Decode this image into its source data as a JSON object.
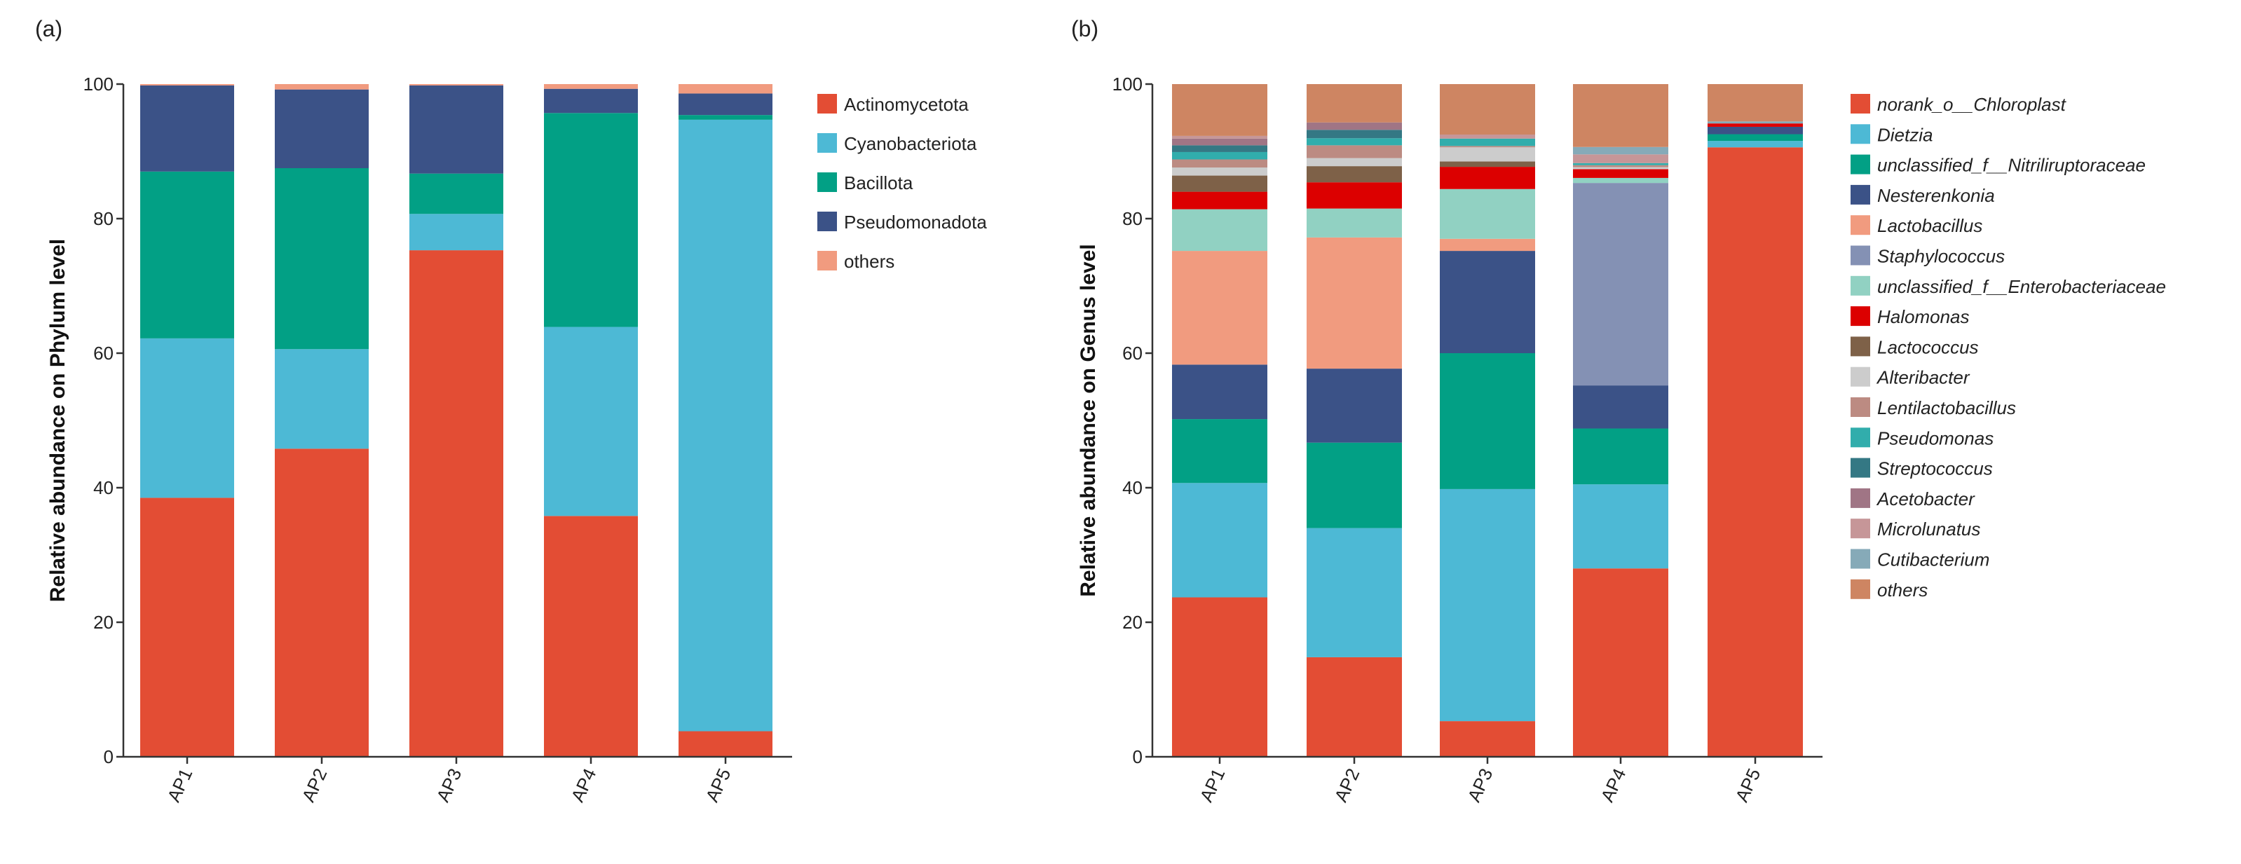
{
  "chart_data": [
    {
      "type": "bar",
      "stacked": true,
      "panel_label": "(a)",
      "title": "",
      "xlabel": "",
      "ylabel": "Relative abundance on Phylum level",
      "ylim": [
        0,
        100
      ],
      "yticks": [
        0,
        20,
        40,
        60,
        80,
        100
      ],
      "categories": [
        "AP1",
        "AP2",
        "AP3",
        "AP4",
        "AP5"
      ],
      "legend_position": "right",
      "series": [
        {
          "name": "Actinomycetota",
          "color": "#E34D34",
          "values": [
            38.5,
            45.8,
            75.3,
            35.8,
            3.8
          ]
        },
        {
          "name": "Cyanobacteriota",
          "color": "#4DB9D5",
          "values": [
            23.7,
            14.8,
            5.4,
            28.1,
            90.9
          ]
        },
        {
          "name": "Bacillota",
          "color": "#02A085",
          "values": [
            24.8,
            26.9,
            6.0,
            31.8,
            0.7
          ]
        },
        {
          "name": "Pseudomonadota",
          "color": "#3B5287",
          "values": [
            12.8,
            11.7,
            13.1,
            3.6,
            3.2
          ]
        },
        {
          "name": "others",
          "color": "#F19B7F",
          "values": [
            0.2,
            0.8,
            0.2,
            0.7,
            1.4
          ]
        }
      ]
    },
    {
      "type": "bar",
      "stacked": true,
      "panel_label": "(b)",
      "title": "",
      "xlabel": "",
      "ylabel": "Relative abundance on Genus level",
      "ylim": [
        0,
        100
      ],
      "yticks": [
        0,
        20,
        40,
        60,
        80,
        100
      ],
      "categories": [
        "AP1",
        "AP2",
        "AP3",
        "AP4",
        "AP5"
      ],
      "legend_position": "right",
      "legend_italic": true,
      "series": [
        {
          "name": "norank_o__Chloroplast",
          "color": "#E34D34",
          "values": [
            23.7,
            14.8,
            5.3,
            28.0,
            90.6
          ]
        },
        {
          "name": "Dietzia",
          "color": "#4DB9D5",
          "values": [
            17.0,
            19.2,
            34.5,
            12.5,
            0.95
          ]
        },
        {
          "name": "unclassified_f__Nitriliruptoraceae",
          "color": "#02A085",
          "values": [
            9.5,
            12.7,
            20.2,
            8.3,
            1.0
          ]
        },
        {
          "name": "Nesterenkonia",
          "color": "#3B5287",
          "values": [
            8.1,
            11.0,
            15.2,
            6.4,
            1.1
          ]
        },
        {
          "name": "Lactobacillus",
          "color": "#F19B7F",
          "values": [
            16.9,
            19.5,
            1.8,
            0,
            0
          ]
        },
        {
          "name": "Staphylococcus",
          "color": "#8491B4",
          "values": [
            0,
            0,
            0,
            30.1,
            0
          ]
        },
        {
          "name": "unclassified_f__Enterobacteriaceae",
          "color": "#91D1C2",
          "values": [
            6.2,
            4.3,
            7.4,
            0.75,
            0
          ]
        },
        {
          "name": "Halomonas",
          "color": "#DC0000",
          "values": [
            2.6,
            3.9,
            3.3,
            1.3,
            0.5
          ]
        },
        {
          "name": "Lactococcus",
          "color": "#7E6148",
          "values": [
            2.4,
            2.4,
            0.8,
            0,
            0
          ]
        },
        {
          "name": "Alteribacter",
          "color": "#CCCCCC",
          "values": [
            1.2,
            1.2,
            2.1,
            0.3,
            0
          ]
        },
        {
          "name": "Lentilactobacillus",
          "color": "#BC8B82",
          "values": [
            1.2,
            1.9,
            0.2,
            0.3,
            0
          ]
        },
        {
          "name": "Pseudomonas",
          "color": "#31ADAC",
          "values": [
            1.1,
            1.05,
            1.1,
            0.3,
            0
          ]
        },
        {
          "name": "Streptococcus",
          "color": "#347884",
          "values": [
            1.0,
            1.25,
            0,
            0,
            0
          ]
        },
        {
          "name": "Acetobacter",
          "color": "#A07585",
          "values": [
            1.0,
            1.1,
            0,
            0,
            0
          ]
        },
        {
          "name": "Microlunatus",
          "color": "#C69698",
          "values": [
            0.4,
            0,
            0.6,
            1.3,
            0
          ]
        },
        {
          "name": "Cutibacterium",
          "color": "#86AAB8",
          "values": [
            0,
            0,
            0,
            1.1,
            0.3
          ]
        },
        {
          "name": "others",
          "color": "#CE8562",
          "values": [
            7.7,
            5.7,
            7.5,
            9.35,
            5.55
          ]
        }
      ]
    }
  ]
}
